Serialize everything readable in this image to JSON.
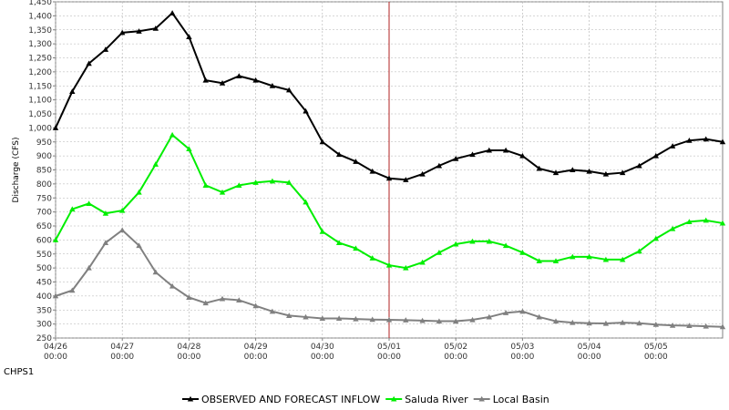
{
  "footer_label": "CHPS1",
  "chart_data": {
    "type": "line",
    "title": "",
    "xlabel": "",
    "ylabel": "Discharge (CFS)",
    "ylim": [
      250,
      1450
    ],
    "y_ticks": [
      250,
      300,
      350,
      400,
      450,
      500,
      550,
      600,
      650,
      700,
      750,
      800,
      850,
      900,
      950,
      1000,
      1050,
      1100,
      1150,
      1200,
      1250,
      1300,
      1350,
      1400,
      1450
    ],
    "y_tick_labels": [
      "250",
      "300",
      "350",
      "400",
      "450",
      "500",
      "550",
      "600",
      "650",
      "700",
      "750",
      "800",
      "850",
      "900",
      "950",
      "1,000",
      "1,050",
      "1,100",
      "1,150",
      "1,200",
      "1,250",
      "1,300",
      "1,350",
      "1,400",
      "1,450"
    ],
    "x_ticks": [
      {
        "date": "04/26",
        "time": "00:00"
      },
      {
        "date": "04/27",
        "time": "00:00"
      },
      {
        "date": "04/28",
        "time": "00:00"
      },
      {
        "date": "04/29",
        "time": "00:00"
      },
      {
        "date": "04/30",
        "time": "00:00"
      },
      {
        "date": "05/01",
        "time": "00:00"
      },
      {
        "date": "05/02",
        "time": "00:00"
      },
      {
        "date": "05/03",
        "time": "00:00"
      },
      {
        "date": "05/04",
        "time": "00:00"
      },
      {
        "date": "05/05",
        "time": "00:00"
      }
    ],
    "x_start": "04/26 00:00",
    "x_end": "05/06 00:00",
    "x_step_hours": 6,
    "current_time_marker": "05/01 00:00",
    "grid": true,
    "legend_position": "bottom",
    "colors": {
      "observed": "#000000",
      "saluda": "#00ee00",
      "local": "#808080",
      "marker_line": "#b22222",
      "grid": "#b0b0b0"
    },
    "series": [
      {
        "name": "OBSERVED AND FORECAST INFLOW",
        "color": "#000000",
        "values": [
          1000,
          1130,
          1230,
          1280,
          1340,
          1345,
          1355,
          1410,
          1325,
          1170,
          1160,
          1185,
          1170,
          1150,
          1135,
          1060,
          950,
          905,
          880,
          845,
          820,
          815,
          835,
          865,
          890,
          905,
          920,
          920,
          900,
          855,
          840,
          850,
          845,
          835,
          840,
          865,
          900,
          935,
          955,
          960,
          950
        ]
      },
      {
        "name": "Saluda River",
        "color": "#00ee00",
        "values": [
          600,
          710,
          730,
          695,
          705,
          770,
          870,
          975,
          925,
          795,
          770,
          795,
          805,
          810,
          805,
          735,
          630,
          590,
          570,
          535,
          510,
          500,
          520,
          555,
          585,
          595,
          595,
          580,
          555,
          525,
          525,
          540,
          540,
          530,
          530,
          560,
          605,
          640,
          665,
          670,
          660
        ]
      },
      {
        "name": "Local Basin",
        "color": "#808080",
        "values": [
          400,
          420,
          500,
          590,
          635,
          580,
          485,
          435,
          395,
          375,
          390,
          385,
          365,
          345,
          330,
          325,
          320,
          320,
          318,
          316,
          315,
          314,
          312,
          310,
          310,
          315,
          325,
          340,
          345,
          325,
          310,
          305,
          303,
          302,
          305,
          303,
          298,
          295,
          294,
          292,
          290
        ]
      }
    ]
  }
}
